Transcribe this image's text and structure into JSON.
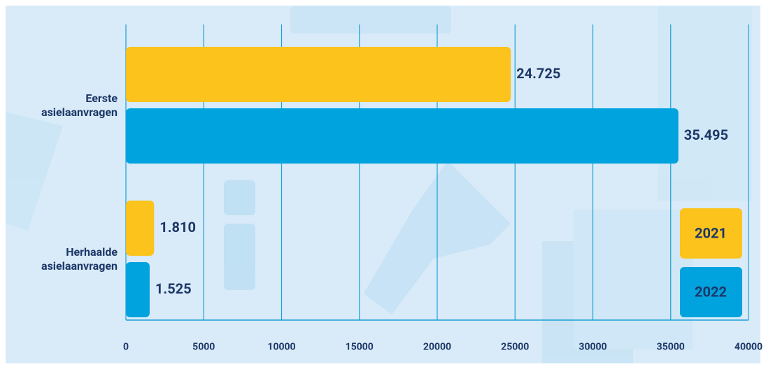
{
  "chart_data": {
    "type": "bar",
    "orientation": "horizontal",
    "categories": [
      "Eerste asielaanvragen",
      "Herhaalde asielaanvragen"
    ],
    "series": [
      {
        "name": "2021",
        "color": "#fbc31c",
        "values": [
          24725,
          1810
        ],
        "value_labels": [
          "24.725",
          "1.810"
        ]
      },
      {
        "name": "2022",
        "color": "#00a3de",
        "values": [
          35495,
          1525
        ],
        "value_labels": [
          "35.495",
          "1.525"
        ]
      }
    ],
    "xlim": [
      0,
      40000
    ],
    "xticks": [
      0,
      5000,
      10000,
      15000,
      20000,
      25000,
      30000,
      35000,
      40000
    ],
    "grid": true,
    "legend": "lower right"
  }
}
